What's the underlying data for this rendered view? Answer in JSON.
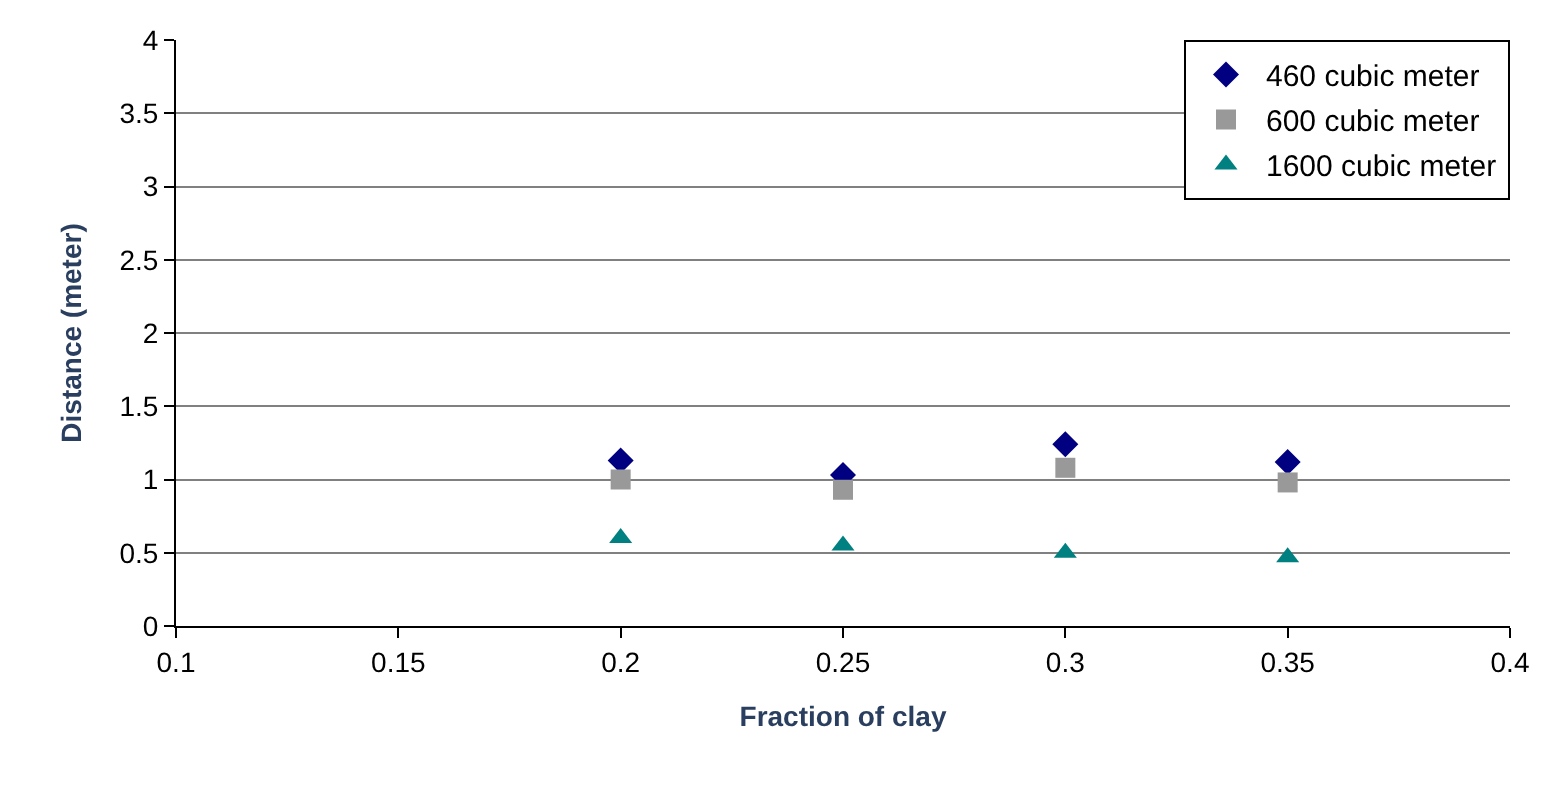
{
  "chart_data": {
    "type": "scatter",
    "xlabel": "Fraction of clay",
    "ylabel": "Distance (meter)",
    "x": [
      0.2,
      0.25,
      0.3,
      0.35
    ],
    "series": [
      {
        "name": "460 cubic meter",
        "color": "#000080",
        "marker": "diamond",
        "values": [
          1.13,
          1.03,
          1.24,
          1.12
        ]
      },
      {
        "name": "600 cubic meter",
        "color": "#999999",
        "marker": "square",
        "values": [
          1.0,
          0.93,
          1.08,
          0.98
        ]
      },
      {
        "name": "1600 cubic meter",
        "color": "#008080",
        "marker": "triangle",
        "values": [
          0.6,
          0.55,
          0.5,
          0.47
        ]
      }
    ],
    "xlim": [
      0.1,
      0.4
    ],
    "xticks": [
      0.1,
      0.15,
      0.2,
      0.25,
      0.3,
      0.35,
      0.4
    ],
    "ylim": [
      0,
      4
    ],
    "yticks": [
      0,
      0.5,
      1,
      1.5,
      2,
      2.5,
      3,
      3.5,
      4
    ],
    "grid": "y",
    "legend": "top right"
  }
}
